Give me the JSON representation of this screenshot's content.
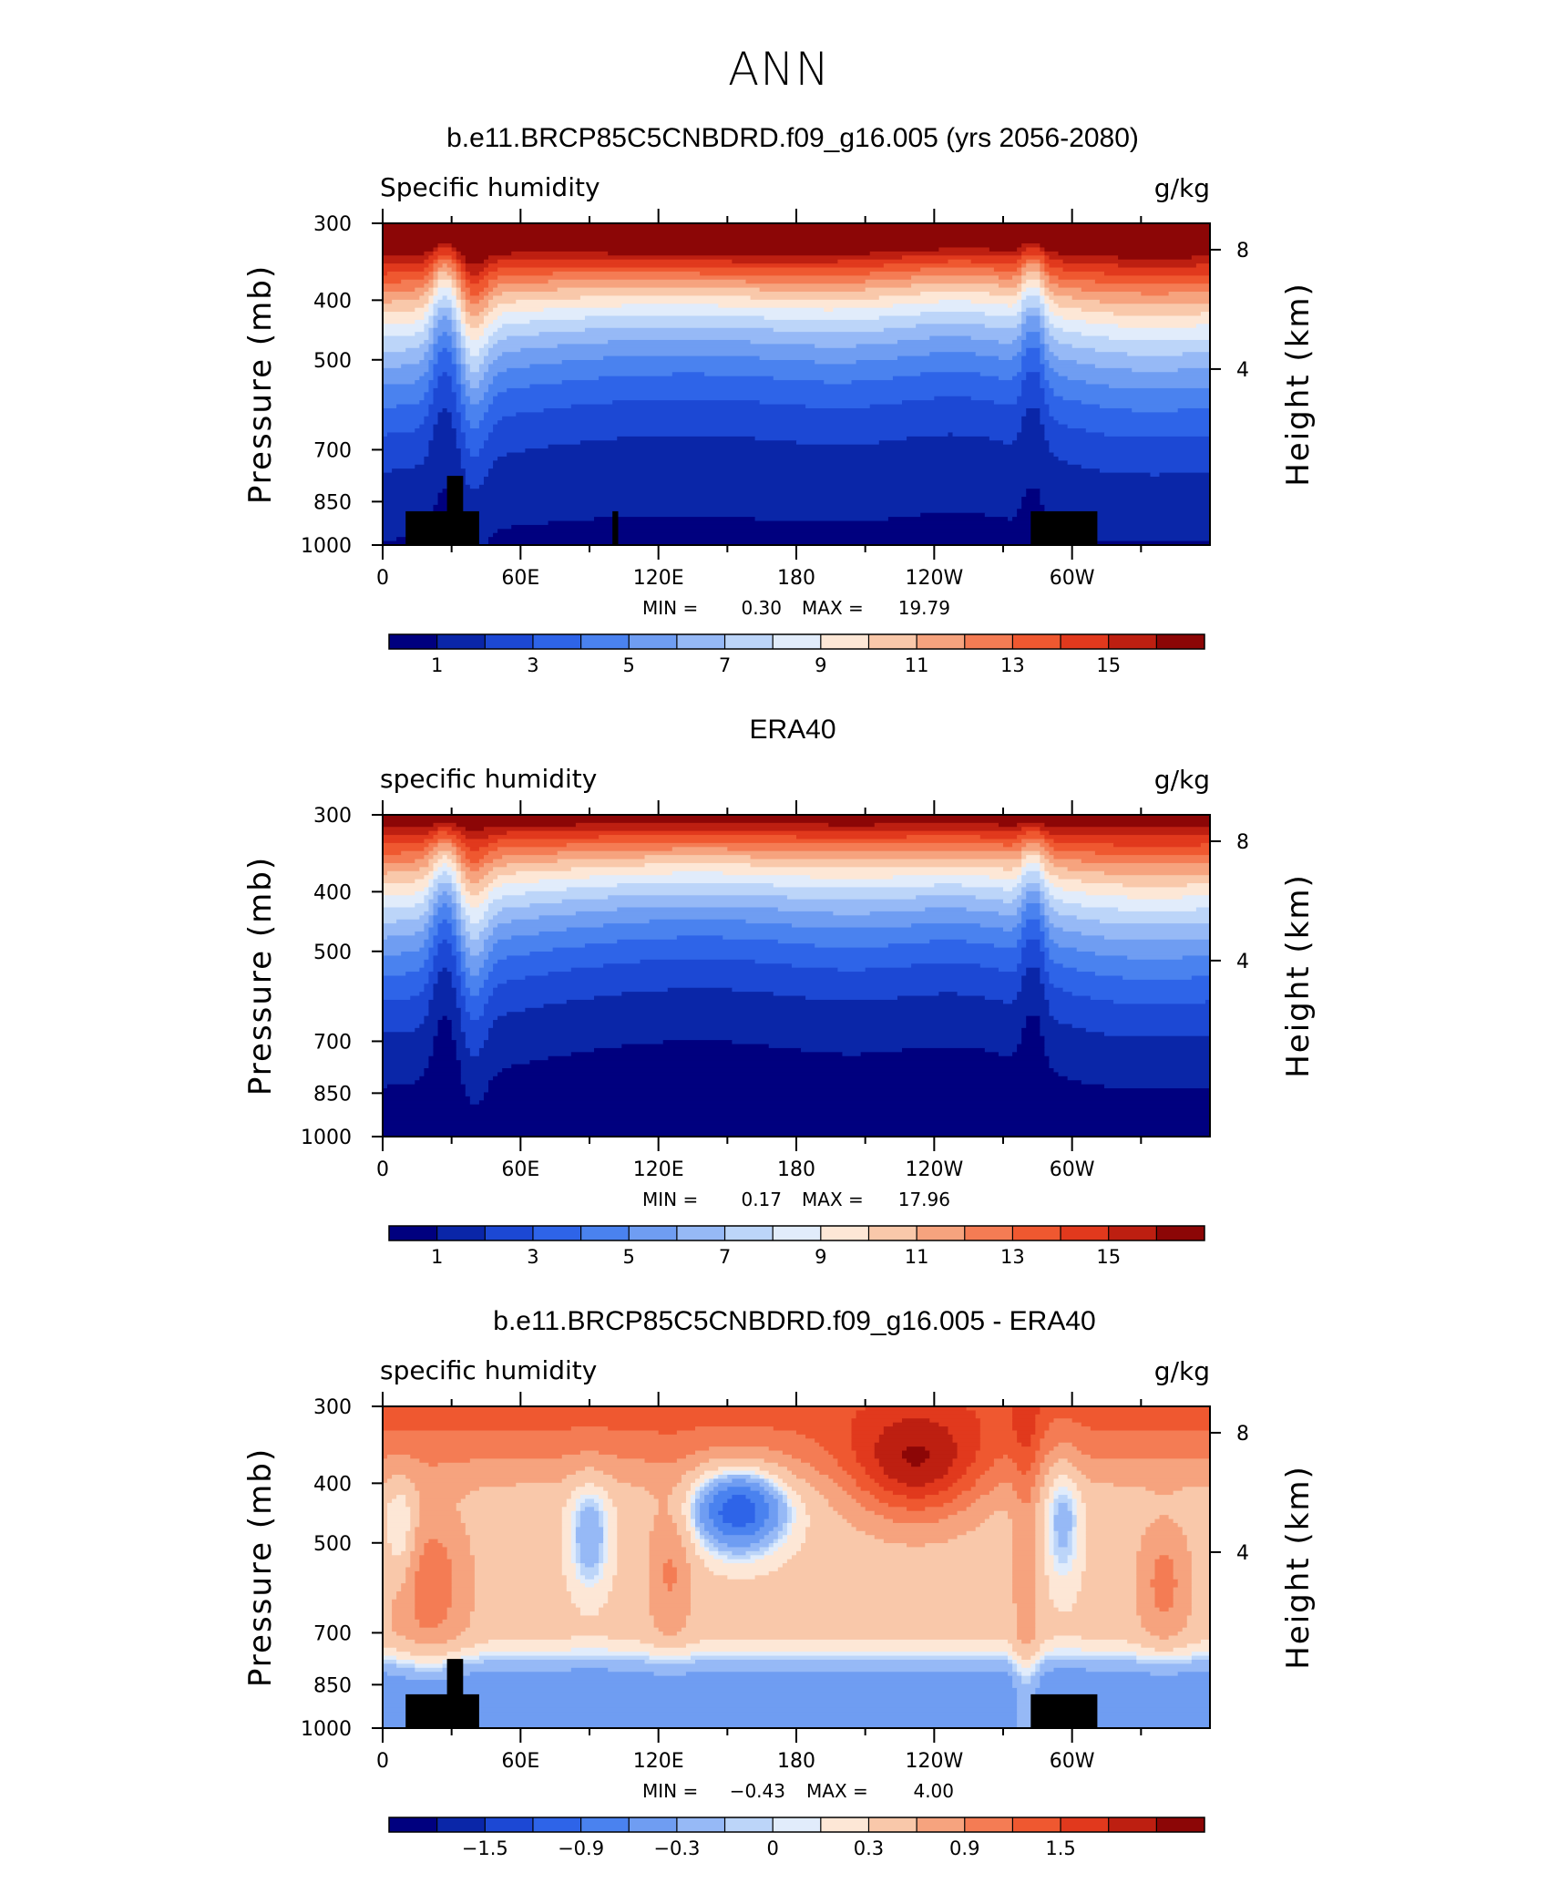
{
  "figure_title": "ANN",
  "chart_data": [
    {
      "type": "contour",
      "title": "b.e11.BRCP85C5CNBDRD.f09_g16.005 (yrs 2056-2080)",
      "left_label": "Specific humidity",
      "right_label": "g/kg",
      "ylabel": "Pressure (mb)",
      "y2label": "Height (km)",
      "xticks": [
        "0",
        "60E",
        "120E",
        "180",
        "120W",
        "60W"
      ],
      "yticks": [
        "300",
        "400",
        "500",
        "700",
        "850",
        "1000"
      ],
      "y2ticks": [
        "8",
        "4"
      ],
      "min_label": "MIN =",
      "min_value": "0.30",
      "max_label": "MAX =",
      "max_value": "19.79",
      "colorbar_ticks": [
        "1",
        "3",
        "5",
        "7",
        "9",
        "11",
        "13",
        "15"
      ],
      "levels": [
        0,
        1,
        2,
        3,
        4,
        5,
        6,
        7,
        8,
        9,
        10,
        11,
        12,
        13,
        14,
        15,
        16
      ],
      "field": "model"
    },
    {
      "type": "contour",
      "title": "ERA40",
      "left_label": "specific humidity",
      "right_label": "g/kg",
      "ylabel": "Pressure (mb)",
      "y2label": "Height (km)",
      "xticks": [
        "0",
        "60E",
        "120E",
        "180",
        "120W",
        "60W"
      ],
      "yticks": [
        "300",
        "400",
        "500",
        "700",
        "850",
        "1000"
      ],
      "y2ticks": [
        "8",
        "4"
      ],
      "min_label": "MIN =",
      "min_value": "0.17",
      "max_label": "MAX =",
      "max_value": "17.96",
      "colorbar_ticks": [
        "1",
        "3",
        "5",
        "7",
        "9",
        "11",
        "13",
        "15"
      ],
      "levels": [
        0,
        1,
        2,
        3,
        4,
        5,
        6,
        7,
        8,
        9,
        10,
        11,
        12,
        13,
        14,
        15,
        16
      ],
      "field": "obs"
    },
    {
      "type": "contour",
      "title": "b.e11.BRCP85C5CNBDRD.f09_g16.005 - ERA40",
      "left_label": "specific humidity",
      "right_label": "g/kg",
      "ylabel": "Pressure (mb)",
      "y2label": "Height (km)",
      "xticks": [
        "0",
        "60E",
        "120E",
        "180",
        "120W",
        "60W"
      ],
      "yticks": [
        "300",
        "400",
        "500",
        "700",
        "850",
        "1000"
      ],
      "y2ticks": [
        "8",
        "4"
      ],
      "min_label": "MIN =",
      "min_value": "−0.43",
      "max_label": "MAX =",
      "max_value": "4.00",
      "colorbar_ticks": [
        "−1.5",
        "−0.9",
        "−0.3",
        "0",
        "0.3",
        "0.9",
        "1.5"
      ],
      "levels": [
        -2.1,
        -1.8,
        -1.5,
        -1.2,
        -0.9,
        -0.6,
        -0.3,
        -0.1,
        0,
        0.1,
        0.3,
        0.6,
        0.9,
        1.2,
        1.5,
        1.8,
        2.1
      ],
      "field": "diff"
    }
  ],
  "palette": [
    "#00007f",
    "#0a26a8",
    "#1c48d4",
    "#2e64e8",
    "#4a82ef",
    "#6f9df2",
    "#96b9f6",
    "#bcd5f9",
    "#e1ecfb",
    "#fde7d6",
    "#f9c8aa",
    "#f6a37e",
    "#f47c54",
    "#ef5830",
    "#e1391d",
    "#bd1f11",
    "#8c0606"
  ],
  "land_color": "#000000"
}
